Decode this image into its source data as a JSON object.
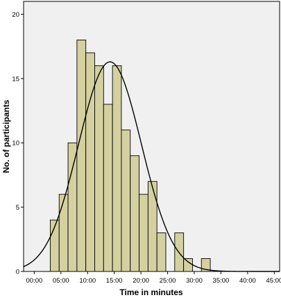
{
  "chart_data": {
    "type": "bar",
    "subtype": "histogram",
    "title": "",
    "xlabel": "Time in minutes",
    "ylabel": "No. of participants",
    "xlim": [
      -2.0,
      46.0
    ],
    "ylim": [
      0,
      21
    ],
    "xticks": [
      0,
      5,
      10,
      15,
      20,
      25,
      30,
      35,
      40,
      45
    ],
    "xtick_labels": [
      "00:00",
      "05:00",
      "10:00",
      "15:00",
      "20:00",
      "25:00",
      "30:00",
      "35:00",
      "40:00",
      "45:00"
    ],
    "yticks": [
      0,
      5,
      10,
      15,
      20
    ],
    "ytick_labels": [
      "0",
      "5",
      "10",
      "15",
      "20"
    ],
    "bin_width": 1.667,
    "bins": [
      {
        "start": 3.0,
        "value": 4
      },
      {
        "start": 4.667,
        "value": 6
      },
      {
        "start": 6.333,
        "value": 10
      },
      {
        "start": 8.0,
        "value": 18
      },
      {
        "start": 9.667,
        "value": 17
      },
      {
        "start": 11.333,
        "value": 16
      },
      {
        "start": 13.0,
        "value": 13
      },
      {
        "start": 14.667,
        "value": 16
      },
      {
        "start": 16.333,
        "value": 11
      },
      {
        "start": 18.0,
        "value": 9
      },
      {
        "start": 19.667,
        "value": 6
      },
      {
        "start": 21.333,
        "value": 7
      },
      {
        "start": 23.0,
        "value": 3
      },
      {
        "start": 26.333,
        "value": 3
      },
      {
        "start": 28.0,
        "value": 1
      },
      {
        "start": 31.333,
        "value": 1
      }
    ],
    "normal_curve": {
      "mean": 14.2,
      "sd": 5.9,
      "peak": 16.3
    },
    "colors": {
      "bar_fill": "#d4d0a0",
      "bar_stroke": "#000000",
      "plot_bg": "#f0f0f0",
      "curve": "#000000"
    },
    "grid": false,
    "legend": "none"
  }
}
